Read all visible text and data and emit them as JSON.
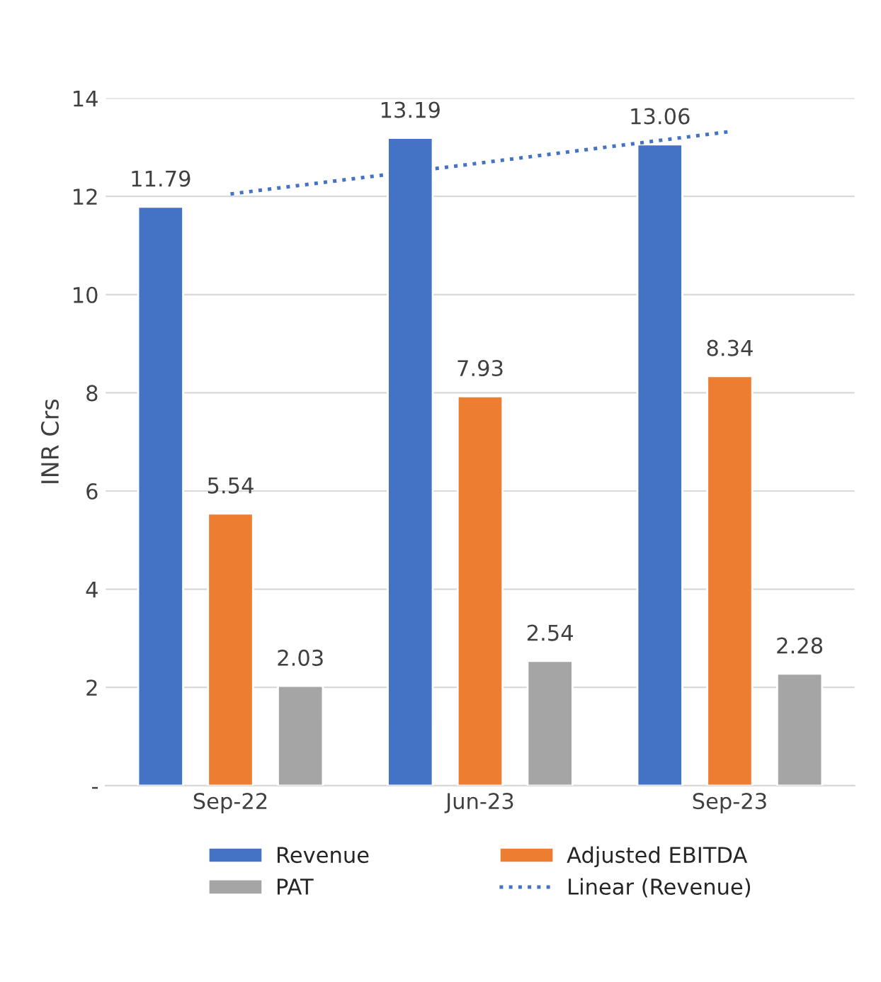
{
  "chart_data": {
    "type": "bar",
    "ylabel": "INR Crs",
    "categories": [
      "Sep-22",
      "Jun-23",
      "Sep-23"
    ],
    "series": [
      {
        "name": "Revenue",
        "color": "#4472c4",
        "values": [
          11.79,
          13.19,
          13.06
        ],
        "value_labels": [
          "11.79",
          "13.19",
          "13.06"
        ]
      },
      {
        "name": "Adjusted EBITDA",
        "color": "#ed7d31",
        "values": [
          5.54,
          7.93,
          8.34
        ],
        "value_labels": [
          "5.54",
          "7.93",
          "8.34"
        ]
      },
      {
        "name": "PAT",
        "color": "#a5a5a5",
        "values": [
          2.03,
          2.54,
          2.28
        ],
        "value_labels": [
          "2.03",
          "2.54",
          "2.28"
        ]
      },
      {
        "name": "Linear (Revenue)",
        "type": "line",
        "line_style": "dotted",
        "color": "#4472c4",
        "values": [
          12.05,
          12.68,
          13.32
        ]
      }
    ],
    "ylim": [
      0,
      14
    ],
    "yticks": [
      {
        "value": 0,
        "label": "-"
      },
      2,
      4,
      6,
      8,
      10,
      12,
      14
    ],
    "grid": "y",
    "legend": "bottom"
  }
}
